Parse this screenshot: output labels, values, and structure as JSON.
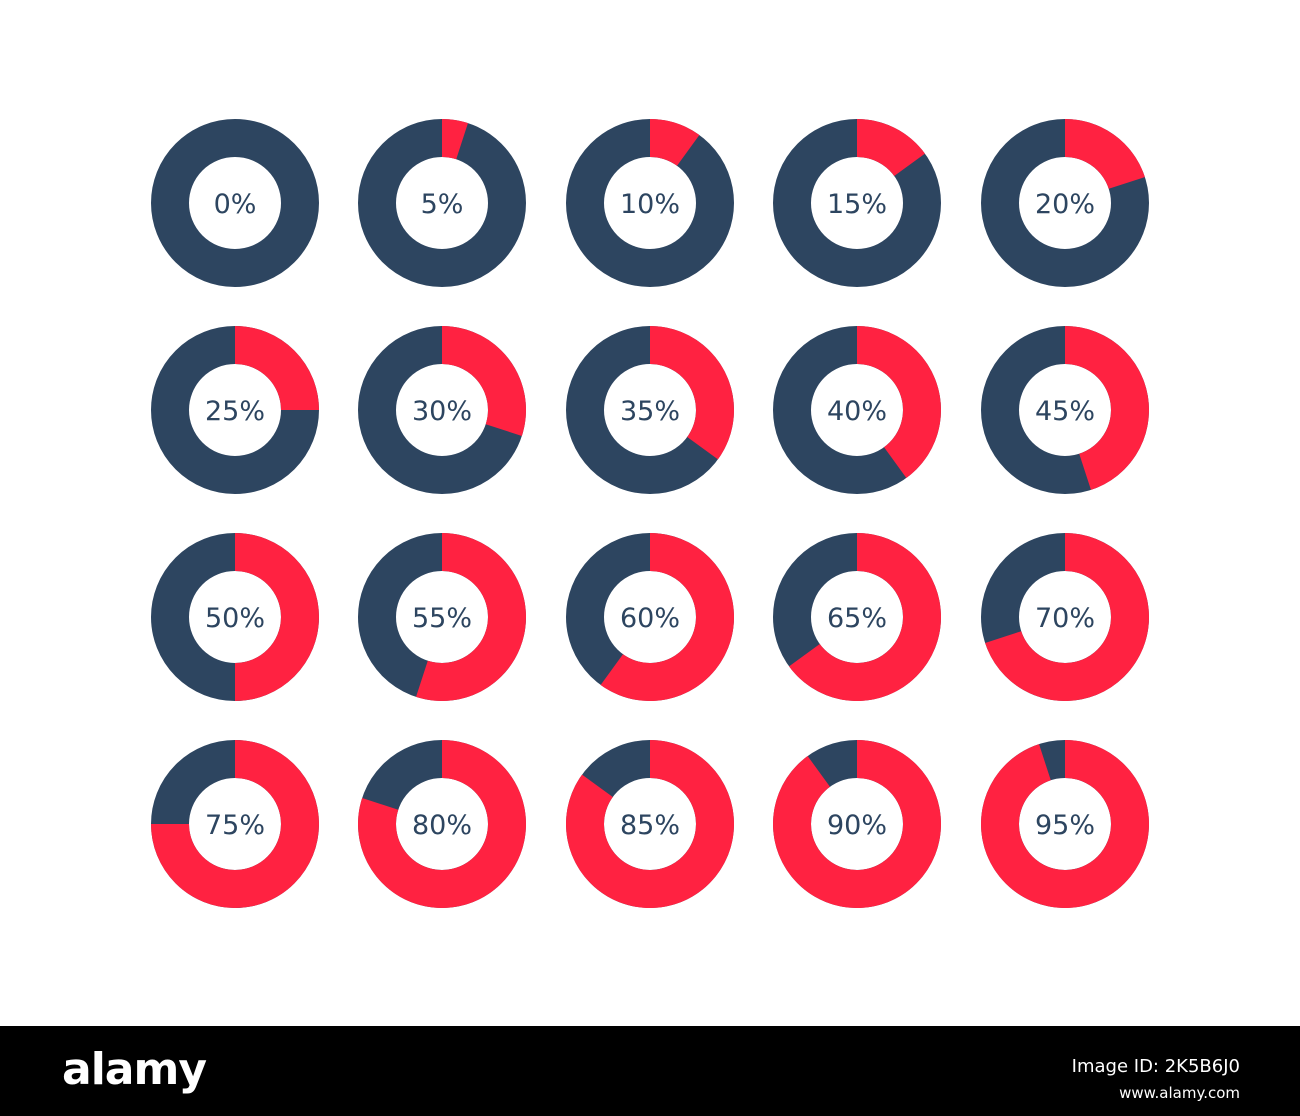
{
  "chart_data": {
    "type": "pie",
    "style": "donut",
    "layout": "grid 4 rows x 5 columns",
    "values": [
      0,
      5,
      10,
      15,
      20,
      25,
      30,
      35,
      40,
      45,
      50,
      55,
      60,
      65,
      70,
      75,
      80,
      85,
      90,
      95
    ],
    "labels": [
      "0%",
      "5%",
      "10%",
      "15%",
      "20%",
      "25%",
      "30%",
      "35%",
      "40%",
      "45%",
      "50%",
      "55%",
      "60%",
      "65%",
      "70%",
      "75%",
      "80%",
      "85%",
      "90%",
      "95%"
    ],
    "fill_color": "#ff2241",
    "track_color": "#2d4560",
    "label_color": "#2d4560"
  },
  "footer": {
    "brand": "alamy",
    "image_id": "Image ID: 2K5B6J0",
    "url": "www.alamy.com"
  }
}
